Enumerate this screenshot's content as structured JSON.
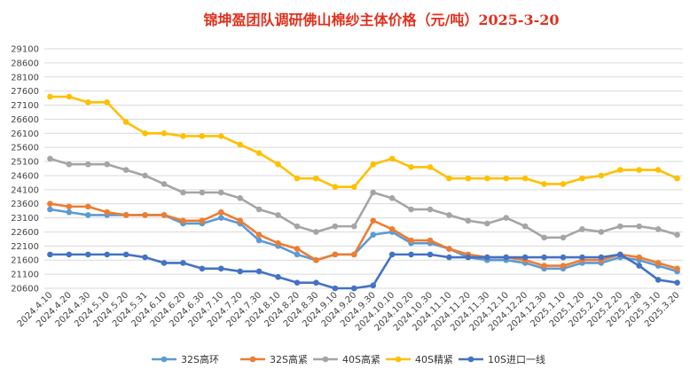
{
  "chart_data": {
    "type": "line",
    "title": "锦坤盈团队调研佛山棉纱主体价格（元/吨）2025-3-20",
    "title_color": "#e0301e",
    "xlabel": "",
    "ylabel": "",
    "ylim": [
      20600,
      29100
    ],
    "yticks": [
      20600,
      21100,
      21600,
      22100,
      22600,
      23100,
      23600,
      24100,
      24600,
      25100,
      25600,
      26100,
      26600,
      27100,
      27600,
      28100,
      28600,
      29100
    ],
    "grid": true,
    "legend_position": "bottom",
    "categories": [
      "2024.4.10",
      "2024.4.20",
      "2024.4.30",
      "2024.5.10",
      "2024.5.20",
      "2024.5.31",
      "2024.6.10",
      "2024.6.20",
      "2024.6.30",
      "2024.7.10",
      "2024.7.20",
      "2024.7.30",
      "2024.8.10",
      "2024.8.20",
      "2024.8.30",
      "2024.9.10",
      "2024.9.20",
      "2024.9.30",
      "2024.10.10",
      "2024.10.20",
      "2024.10.30",
      "2024.11.10",
      "2024.11.20",
      "2024.11.30",
      "2024.12.10",
      "2024.12.20",
      "2024.12.30",
      "2025.1.10",
      "2025.1.20",
      "2025.2.10",
      "2025.2.20",
      "2025.2.28",
      "2025.3.10",
      "2025.3.20"
    ],
    "series": [
      {
        "name": "32S高环",
        "color": "#5b9bd5",
        "values": [
          23400,
          23300,
          23200,
          23200,
          23200,
          23200,
          23200,
          22900,
          22900,
          23100,
          22900,
          22300,
          22100,
          21800,
          21600,
          21800,
          21800,
          22500,
          22600,
          22200,
          22200,
          22000,
          21700,
          21600,
          21600,
          21500,
          21300,
          21300,
          21500,
          21500,
          21700,
          21600,
          21400,
          21200
        ]
      },
      {
        "name": "32S高紧",
        "color": "#ed7d31",
        "values": [
          23600,
          23500,
          23500,
          23300,
          23200,
          23200,
          23200,
          23000,
          23000,
          23300,
          23000,
          22500,
          22200,
          22000,
          21600,
          21800,
          21800,
          23000,
          22700,
          22300,
          22300,
          22000,
          21800,
          21700,
          21700,
          21600,
          21400,
          21400,
          21600,
          21600,
          21800,
          21700,
          21500,
          21300
        ]
      },
      {
        "name": "40S高紧",
        "color": "#a5a5a5",
        "values": [
          25200,
          25000,
          25000,
          25000,
          24800,
          24600,
          24300,
          24000,
          24000,
          24000,
          23800,
          23400,
          23200,
          22800,
          22600,
          22800,
          22800,
          24000,
          23800,
          23400,
          23400,
          23200,
          23000,
          22900,
          23100,
          22800,
          22400,
          22400,
          22700,
          22600,
          22800,
          22800,
          22700,
          22500
        ]
      },
      {
        "name": "40S精紧",
        "color": "#ffc000",
        "values": [
          27400,
          27400,
          27200,
          27200,
          26500,
          26100,
          26100,
          26000,
          26000,
          26000,
          25700,
          25400,
          25000,
          24500,
          24500,
          24200,
          24200,
          25000,
          25200,
          24900,
          24900,
          24500,
          24500,
          24500,
          24500,
          24500,
          24300,
          24300,
          24500,
          24600,
          24800,
          24800,
          24800,
          24500
        ]
      },
      {
        "name": "10S进口一线",
        "color": "#4472c4",
        "values": [
          21800,
          21800,
          21800,
          21800,
          21800,
          21700,
          21500,
          21500,
          21300,
          21300,
          21200,
          21200,
          21000,
          20800,
          20800,
          20600,
          20600,
          20700,
          21800,
          21800,
          21800,
          21700,
          21700,
          21700,
          21700,
          21700,
          21700,
          21700,
          21700,
          21700,
          21800,
          21400,
          20900,
          20800
        ]
      }
    ]
  }
}
